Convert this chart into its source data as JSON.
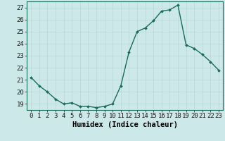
{
  "x": [
    0,
    1,
    2,
    3,
    4,
    5,
    6,
    7,
    8,
    9,
    10,
    11,
    12,
    13,
    14,
    15,
    16,
    17,
    18,
    19,
    20,
    21,
    22,
    23
  ],
  "y": [
    21.2,
    20.5,
    20.0,
    19.4,
    19.0,
    19.1,
    18.8,
    18.8,
    18.7,
    18.8,
    19.0,
    20.5,
    23.3,
    25.0,
    25.3,
    25.9,
    26.7,
    26.8,
    27.2,
    23.9,
    23.6,
    23.1,
    22.5,
    21.8
  ],
  "line_color": "#1a6b5a",
  "marker": "D",
  "marker_size": 2.0,
  "linewidth": 1.0,
  "xlabel": "Humidex (Indice chaleur)",
  "xlim": [
    -0.5,
    23.5
  ],
  "ylim": [
    18.5,
    27.5
  ],
  "yticks": [
    19,
    20,
    21,
    22,
    23,
    24,
    25,
    26,
    27
  ],
  "xticks": [
    0,
    1,
    2,
    3,
    4,
    5,
    6,
    7,
    8,
    9,
    10,
    11,
    12,
    13,
    14,
    15,
    16,
    17,
    18,
    19,
    20,
    21,
    22,
    23
  ],
  "background_color": "#cce8e8",
  "grid_color": "#b8d8d8",
  "xlabel_fontsize": 7.5,
  "tick_fontsize": 6.5
}
